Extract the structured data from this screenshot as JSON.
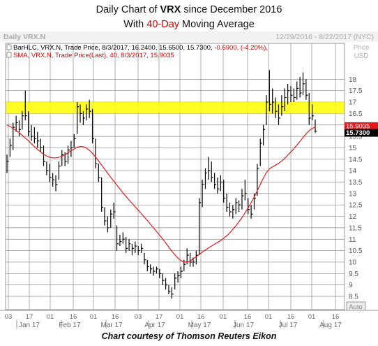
{
  "title": {
    "line1_prefix": "Daily Chart of ",
    "line1_ticker": "VRX",
    "line1_suffix": " since December 2016",
    "line2_prefix": "With ",
    "line2_highlight": "40-Day",
    "line2_suffix": " Moving Average"
  },
  "header": {
    "left": "Daily VRX.N",
    "right": "12/29/2016 - 8/22/2017 (NYC)"
  },
  "legend": [
    {
      "text": "BarHLC, VRX.N, Trade Price, 8/3/2017, 16.2400, 15.6500, 15.7300, ",
      "change": "-0.6900, (-4.20%),",
      "color": "#000000",
      "change_color": "#d60000"
    },
    {
      "text": "SMA, VRX.N, Trade Price(Last), 40, 8/3/2017, 15.9035",
      "change": "",
      "color": "#d60000",
      "change_color": "#d60000"
    }
  ],
  "axis": {
    "price_label": "Price",
    "currency_label": "USD",
    "auto_label": "Auto",
    "day_ticks": [
      "03",
      "17",
      "01",
      "16",
      "01",
      "16",
      "03",
      "17",
      "01",
      "16",
      "01",
      "16",
      "01",
      "16",
      "01",
      "16"
    ],
    "month_labels": [
      "Jan 17",
      "Feb 17",
      "Mar 17",
      "Apr 17",
      "May 17",
      "Jun 17",
      "Jul 17",
      "Aug 17"
    ]
  },
  "badges": {
    "sma_value": "15.9035",
    "last_value": "15.7300",
    "sma_color": "#e31a1c",
    "last_color": "#000000"
  },
  "caption": "Chart courtesy of Thomson Reuters Eikon",
  "chart_data": {
    "type": "bar",
    "subtype": "HLC price bars with 40-day simple moving average",
    "ticker": "VRX.N",
    "ylim": [
      8.5,
      18.5
    ],
    "ylabel": "Price USD",
    "y_ticks": [
      8.5,
      9,
      9.5,
      10,
      10.5,
      11,
      11.5,
      12,
      12.5,
      13,
      13.5,
      14,
      14.5,
      15,
      15.5,
      16,
      16.5,
      17,
      17.5,
      18
    ],
    "highlight_band": {
      "from": 16.5,
      "to": 17.0,
      "color": "#ffff00"
    },
    "grid": true,
    "bars": [
      {
        "h": 14.7,
        "l": 13.9,
        "c": 14.4
      },
      {
        "h": 15.4,
        "l": 14.6,
        "c": 15.1
      },
      {
        "h": 16.1,
        "l": 14.9,
        "c": 15.9
      },
      {
        "h": 16.4,
        "l": 15.7,
        "c": 16.1
      },
      {
        "h": 16.2,
        "l": 15.5,
        "c": 15.8
      },
      {
        "h": 16.6,
        "l": 15.8,
        "c": 16.4
      },
      {
        "h": 17.5,
        "l": 16.2,
        "c": 16.4
      },
      {
        "h": 16.6,
        "l": 15.5,
        "c": 15.7
      },
      {
        "h": 16.0,
        "l": 15.3,
        "c": 15.5
      },
      {
        "h": 15.9,
        "l": 15.2,
        "c": 15.4
      },
      {
        "h": 15.7,
        "l": 15.0,
        "c": 15.3
      },
      {
        "h": 15.4,
        "l": 14.8,
        "c": 15.0
      },
      {
        "h": 15.1,
        "l": 14.2,
        "c": 14.4
      },
      {
        "h": 14.4,
        "l": 13.8,
        "c": 14.0
      },
      {
        "h": 14.3,
        "l": 13.5,
        "c": 13.7
      },
      {
        "h": 13.9,
        "l": 13.3,
        "c": 13.6
      },
      {
        "h": 13.8,
        "l": 13.1,
        "c": 13.4
      },
      {
        "h": 14.4,
        "l": 13.6,
        "c": 14.2
      },
      {
        "h": 14.9,
        "l": 14.2,
        "c": 14.7
      },
      {
        "h": 14.8,
        "l": 14.2,
        "c": 14.4
      },
      {
        "h": 15.1,
        "l": 14.3,
        "c": 14.9
      },
      {
        "h": 15.3,
        "l": 14.6,
        "c": 15.0
      },
      {
        "h": 15.6,
        "l": 15.0,
        "c": 15.4
      },
      {
        "h": 17.0,
        "l": 15.6,
        "c": 16.8
      },
      {
        "h": 16.9,
        "l": 16.1,
        "c": 16.5
      },
      {
        "h": 16.6,
        "l": 16.0,
        "c": 16.3
      },
      {
        "h": 16.9,
        "l": 16.2,
        "c": 16.7
      },
      {
        "h": 17.1,
        "l": 16.3,
        "c": 16.6
      },
      {
        "h": 16.7,
        "l": 15.2,
        "c": 15.4
      },
      {
        "h": 15.4,
        "l": 14.1,
        "c": 14.3
      },
      {
        "h": 14.3,
        "l": 13.5,
        "c": 13.7
      },
      {
        "h": 13.7,
        "l": 12.2,
        "c": 12.4
      },
      {
        "h": 12.4,
        "l": 11.6,
        "c": 11.8
      },
      {
        "h": 12.0,
        "l": 11.3,
        "c": 11.5
      },
      {
        "h": 12.3,
        "l": 11.5,
        "c": 12.1
      },
      {
        "h": 12.6,
        "l": 11.9,
        "c": 12.2
      },
      {
        "h": 11.6,
        "l": 10.5,
        "c": 10.8
      },
      {
        "h": 11.2,
        "l": 10.7,
        "c": 10.9
      },
      {
        "h": 11.3,
        "l": 10.8,
        "c": 11.0
      },
      {
        "h": 11.1,
        "l": 10.4,
        "c": 10.6
      },
      {
        "h": 11.0,
        "l": 10.5,
        "c": 10.8
      },
      {
        "h": 10.8,
        "l": 10.3,
        "c": 10.6
      },
      {
        "h": 10.9,
        "l": 10.4,
        "c": 10.7
      },
      {
        "h": 10.7,
        "l": 10.3,
        "c": 10.5
      },
      {
        "h": 10.8,
        "l": 10.4,
        "c": 10.6
      },
      {
        "h": 10.4,
        "l": 9.9,
        "c": 10.1
      },
      {
        "h": 10.1,
        "l": 9.6,
        "c": 9.8
      },
      {
        "h": 9.9,
        "l": 9.5,
        "c": 9.7
      },
      {
        "h": 9.8,
        "l": 9.4,
        "c": 9.6
      },
      {
        "h": 9.8,
        "l": 9.5,
        "c": 9.7
      },
      {
        "h": 9.7,
        "l": 9.3,
        "c": 9.5
      },
      {
        "h": 9.5,
        "l": 9.0,
        "c": 9.2
      },
      {
        "h": 9.3,
        "l": 8.8,
        "c": 9.0
      },
      {
        "h": 9.0,
        "l": 8.6,
        "c": 8.7
      },
      {
        "h": 8.9,
        "l": 8.4,
        "c": 8.6
      },
      {
        "h": 9.5,
        "l": 8.8,
        "c": 9.3
      },
      {
        "h": 9.6,
        "l": 9.1,
        "c": 9.4
      },
      {
        "h": 9.8,
        "l": 9.3,
        "c": 9.6
      },
      {
        "h": 10.1,
        "l": 9.6,
        "c": 9.9
      },
      {
        "h": 10.6,
        "l": 9.9,
        "c": 10.3
      },
      {
        "h": 10.4,
        "l": 9.8,
        "c": 10.0
      },
      {
        "h": 10.2,
        "l": 9.8,
        "c": 10.0
      },
      {
        "h": 10.5,
        "l": 9.9,
        "c": 10.3
      },
      {
        "h": 12.8,
        "l": 10.3,
        "c": 12.6
      },
      {
        "h": 13.6,
        "l": 12.4,
        "c": 13.4
      },
      {
        "h": 14.1,
        "l": 13.2,
        "c": 13.9
      },
      {
        "h": 14.6,
        "l": 13.6,
        "c": 14.0
      },
      {
        "h": 14.4,
        "l": 13.5,
        "c": 13.7
      },
      {
        "h": 13.9,
        "l": 13.2,
        "c": 13.4
      },
      {
        "h": 13.7,
        "l": 13.0,
        "c": 13.2
      },
      {
        "h": 13.8,
        "l": 13.1,
        "c": 13.5
      },
      {
        "h": 13.6,
        "l": 12.6,
        "c": 12.8
      },
      {
        "h": 13.0,
        "l": 12.2,
        "c": 12.4
      },
      {
        "h": 12.6,
        "l": 12.0,
        "c": 12.2
      },
      {
        "h": 12.5,
        "l": 11.9,
        "c": 12.3
      },
      {
        "h": 12.8,
        "l": 12.1,
        "c": 12.6
      },
      {
        "h": 12.7,
        "l": 12.2,
        "c": 12.5
      },
      {
        "h": 13.2,
        "l": 12.3,
        "c": 12.9
      },
      {
        "h": 13.6,
        "l": 12.7,
        "c": 13.0
      },
      {
        "h": 12.8,
        "l": 12.1,
        "c": 12.3
      },
      {
        "h": 12.5,
        "l": 11.9,
        "c": 12.1
      },
      {
        "h": 13.0,
        "l": 12.3,
        "c": 12.8
      },
      {
        "h": 14.3,
        "l": 12.9,
        "c": 14.1
      },
      {
        "h": 15.4,
        "l": 14.2,
        "c": 15.2
      },
      {
        "h": 16.0,
        "l": 15.1,
        "c": 15.8
      },
      {
        "h": 17.3,
        "l": 16.0,
        "c": 17.0
      },
      {
        "h": 18.4,
        "l": 16.6,
        "c": 16.9
      },
      {
        "h": 17.6,
        "l": 16.5,
        "c": 17.0
      },
      {
        "h": 17.2,
        "l": 16.3,
        "c": 16.6
      },
      {
        "h": 16.9,
        "l": 16.0,
        "c": 16.3
      },
      {
        "h": 17.3,
        "l": 16.4,
        "c": 16.8
      },
      {
        "h": 17.6,
        "l": 16.6,
        "c": 17.2
      },
      {
        "h": 17.8,
        "l": 16.9,
        "c": 17.5
      },
      {
        "h": 17.7,
        "l": 17.0,
        "c": 17.3
      },
      {
        "h": 17.6,
        "l": 17.0,
        "c": 17.2
      },
      {
        "h": 17.9,
        "l": 17.1,
        "c": 17.6
      },
      {
        "h": 18.1,
        "l": 17.2,
        "c": 17.4
      },
      {
        "h": 18.3,
        "l": 17.3,
        "c": 17.8
      },
      {
        "h": 18.0,
        "l": 17.1,
        "c": 17.3
      },
      {
        "h": 17.4,
        "l": 16.0,
        "c": 16.3
      },
      {
        "h": 16.9,
        "l": 16.2,
        "c": 16.4
      },
      {
        "h": 16.24,
        "l": 15.65,
        "c": 15.73
      }
    ],
    "sma": {
      "name": "SMA 40",
      "color": "#e31a1c",
      "values": [
        16.0,
        15.93,
        15.85,
        15.76,
        15.66,
        15.55,
        15.43,
        15.31,
        15.18,
        15.05,
        14.93,
        14.82,
        14.72,
        14.64,
        14.59,
        14.56,
        14.56,
        14.58,
        14.63,
        14.7,
        14.78,
        14.87,
        14.95,
        15.02,
        15.06,
        15.05,
        14.99,
        14.89,
        14.76,
        14.6,
        14.43,
        14.25,
        14.07,
        13.89,
        13.71,
        13.54,
        13.37,
        13.2,
        13.03,
        12.87,
        12.72,
        12.57,
        12.42,
        12.27,
        12.12,
        11.97,
        11.82,
        11.66,
        11.5,
        11.34,
        11.18,
        11.01,
        10.84,
        10.66,
        10.48,
        10.32,
        10.18,
        10.07,
        10.01,
        10.0,
        10.05,
        10.14,
        10.24,
        10.34,
        10.44,
        10.53,
        10.62,
        10.7,
        10.78,
        10.86,
        10.94,
        11.04,
        11.15,
        11.28,
        11.43,
        11.59,
        11.76,
        11.95,
        12.15,
        12.37,
        12.6,
        12.85,
        13.12,
        13.4,
        13.68,
        13.92,
        14.08,
        14.17,
        14.24,
        14.32,
        14.42,
        14.54,
        14.68,
        14.82,
        14.96,
        15.12,
        15.28,
        15.45,
        15.62,
        15.75,
        15.85,
        15.9
      ]
    }
  }
}
